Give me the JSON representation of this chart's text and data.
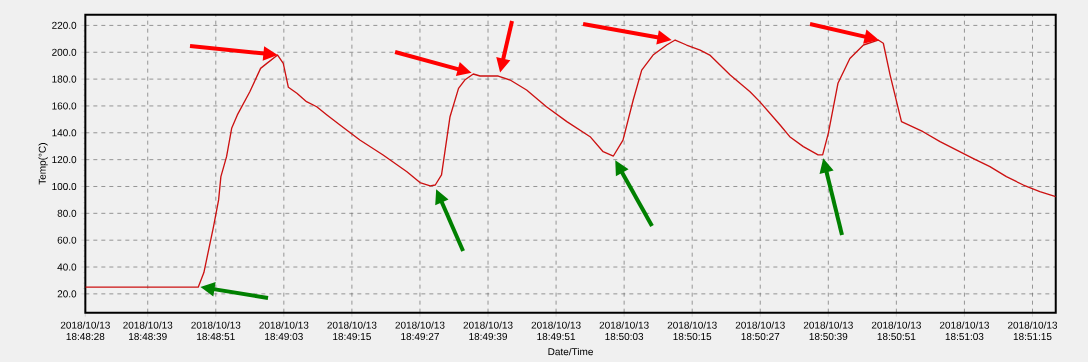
{
  "chart_data": {
    "type": "line",
    "xlabel": "Date/Time",
    "ylabel": "Temp(°C)",
    "color": "#cc1111",
    "grid": true,
    "x": [
      "2018-10-13T18:48:28.0",
      "2018-10-13T18:48:47.9",
      "2018-10-13T18:48:48.9",
      "2018-10-13T18:48:50.6",
      "2018-10-13T18:48:51.5",
      "2018-10-13T18:48:51.9",
      "2018-10-13T18:48:52.9",
      "2018-10-13T18:48:53.8",
      "2018-10-13T18:48:54.8",
      "2018-10-13T18:48:57.0",
      "2018-10-13T18:48:58.9",
      "2018-10-13T18:49:00.0",
      "2018-10-13T18:49:01.9",
      "2018-10-13T18:49:02.9",
      "2018-10-13T18:49:03.8",
      "2018-10-13T18:49:05.3",
      "2018-10-13T18:49:07.0",
      "2018-10-13T18:49:08.8",
      "2018-10-13T18:49:10.6",
      "2018-10-13T18:49:12.9",
      "2018-10-13T18:49:16.4",
      "2018-10-13T18:49:20.5",
      "2018-10-13T18:49:24.7",
      "2018-10-13T18:49:27.0",
      "2018-10-13T18:49:28.8",
      "2018-10-13T18:49:29.7",
      "2018-10-13T18:49:30.8",
      "2018-10-13T18:49:31.4",
      "2018-10-13T18:49:32.3",
      "2018-10-13T18:49:33.8",
      "2018-10-13T18:49:34.9",
      "2018-10-13T18:49:36.4",
      "2018-10-13T18:49:37.6",
      "2018-10-13T18:49:40.8",
      "2018-10-13T18:49:42.9",
      "2018-10-13T18:49:45.8",
      "2018-10-13T18:49:49.3",
      "2018-10-13T18:49:52.9",
      "2018-10-13T18:49:57.0",
      "2018-10-13T18:49:59.3",
      "2018-10-13T18:50:01.1",
      "2018-10-13T18:50:02.8",
      "2018-10-13T18:50:04.6",
      "2018-10-13T18:50:06.1",
      "2018-10-13T18:50:08.1",
      "2018-10-13T18:50:10.5",
      "2018-10-13T18:50:12.0",
      "2018-10-13T18:50:14.0",
      "2018-10-13T18:50:16.4",
      "2018-10-13T18:50:18.1",
      "2018-10-13T18:50:21.7",
      "2018-10-13T18:50:25.2",
      "2018-10-13T18:50:26.9",
      "2018-10-13T18:50:30.5",
      "2018-10-13T18:50:32.2",
      "2018-10-13T18:50:34.6",
      "2018-10-13T18:50:37.2",
      "2018-10-13T18:50:38.0",
      "2018-10-13T18:50:39.0",
      "2018-10-13T18:50:40.7",
      "2018-10-13T18:50:42.8",
      "2018-10-13T18:50:45.2",
      "2018-10-13T18:50:47.8",
      "2018-10-13T18:50:48.7",
      "2018-10-13T18:50:49.9",
      "2018-10-13T18:50:51.9",
      "2018-10-13T18:50:55.7",
      "2018-10-13T18:50:58.7",
      "2018-10-13T18:51:01.6",
      "2018-10-13T18:51:04.5",
      "2018-10-13T18:51:07.5",
      "2018-10-13T18:51:10.4",
      "2018-10-13T18:51:13.4",
      "2018-10-13T18:51:16.3",
      "2018-10-13T18:51:19.1"
    ],
    "values": [
      25.0,
      25.0,
      35.9,
      70.1,
      90.0,
      107.3,
      122.2,
      143.3,
      153.3,
      170.6,
      188.0,
      191.7,
      197.9,
      191.7,
      173.9,
      169.4,
      163.2,
      159.4,
      153.3,
      145.8,
      134.6,
      123.5,
      111.0,
      102.9,
      100.4,
      101.1,
      108.6,
      125.9,
      152.0,
      173.1,
      179.3,
      183.8,
      182.3,
      182.3,
      179.3,
      171.9,
      159.4,
      148.3,
      137.1,
      125.9,
      122.7,
      134.6,
      164.4,
      186.7,
      197.9,
      205.4,
      209.1,
      205.4,
      201.6,
      197.9,
      183.0,
      170.6,
      163.2,
      145.8,
      137.1,
      129.7,
      123.5,
      123.5,
      139.6,
      176.9,
      195.4,
      205.4,
      209.1,
      206.7,
      183.0,
      148.3,
      140.8,
      133.4,
      127.2,
      121.0,
      114.8,
      107.3,
      101.1,
      96.2,
      92.4
    ],
    "xlim": [
      "2018-10-13T18:48:28.0",
      "2018-10-13T18:51:19.1"
    ],
    "ylim": [
      6,
      228
    ],
    "xticks": [
      {
        "value": "2018-10-13T18:48:28",
        "label": "2018/10/13 18:48:28"
      },
      {
        "value": "2018-10-13T18:48:39",
        "label": "2018/10/13 18:48:39"
      },
      {
        "value": "2018-10-13T18:48:51",
        "label": "2018/10/13 18:48:51"
      },
      {
        "value": "2018-10-13T18:49:03",
        "label": "2018/10/13 18:49:03"
      },
      {
        "value": "2018-10-13T18:49:15",
        "label": "2018/10/13 18:49:15"
      },
      {
        "value": "2018-10-13T18:49:27",
        "label": "2018/10/13 18:49:27"
      },
      {
        "value": "2018-10-13T18:49:39",
        "label": "2018/10/13 18:49:39"
      },
      {
        "value": "2018-10-13T18:49:51",
        "label": "2018/10/13 18:49:51"
      },
      {
        "value": "2018-10-13T18:50:03",
        "label": "2018/10/13 18:50:03"
      },
      {
        "value": "2018-10-13T18:50:15",
        "label": "2018/10/13 18:50:15"
      },
      {
        "value": "2018-10-13T18:50:27",
        "label": "2018/10/13 18:50:27"
      },
      {
        "value": "2018-10-13T18:50:39",
        "label": "2018/10/13 18:50:39"
      },
      {
        "value": "2018-10-13T18:50:51",
        "label": "2018/10/13 18:50:51"
      },
      {
        "value": "2018-10-13T18:51:03",
        "label": "2018/10/13 18:51:03"
      },
      {
        "value": "2018-10-13T18:51:15",
        "label": "2018/10/13 18:51:15"
      }
    ],
    "yticks": [
      {
        "value": 20,
        "label": "20.0"
      },
      {
        "value": 40,
        "label": "40.0"
      },
      {
        "value": 60,
        "label": "60.0"
      },
      {
        "value": 80,
        "label": "80.0"
      },
      {
        "value": 100,
        "label": "100.0"
      },
      {
        "value": 120,
        "label": "120.0"
      },
      {
        "value": 140,
        "label": "140.0"
      },
      {
        "value": 160,
        "label": "160.0"
      },
      {
        "value": 180,
        "label": "180.0"
      },
      {
        "value": 200,
        "label": "200.0"
      },
      {
        "value": 220,
        "label": "220.0"
      }
    ]
  }
}
